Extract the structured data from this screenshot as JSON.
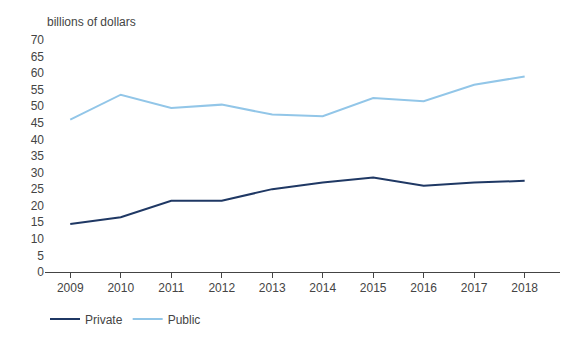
{
  "chart_data": {
    "type": "line",
    "ylabel": "billions of dollars",
    "x": [
      2009,
      2010,
      2011,
      2012,
      2013,
      2014,
      2015,
      2016,
      2017,
      2018
    ],
    "series": [
      {
        "name": "Private",
        "color": "#1F3864",
        "values": [
          14.5,
          16.5,
          21.5,
          21.5,
          25.0,
          27.0,
          28.5,
          26.0,
          27.0,
          27.5
        ]
      },
      {
        "name": "Public",
        "color": "#92C6E8",
        "values": [
          46.0,
          53.5,
          49.5,
          50.5,
          47.5,
          47.0,
          52.5,
          51.5,
          56.5,
          59.0
        ]
      }
    ],
    "xlim": [
      2008.5,
      2018.7
    ],
    "xticks": [
      2009,
      2010,
      2011,
      2012,
      2013,
      2014,
      2015,
      2016,
      2017,
      2018
    ],
    "ylim": [
      0,
      70
    ],
    "yticks": [
      0,
      5,
      10,
      15,
      20,
      25,
      30,
      35,
      40,
      45,
      50,
      55,
      60,
      65,
      70
    ],
    "grid": false,
    "legend": "bottom"
  }
}
